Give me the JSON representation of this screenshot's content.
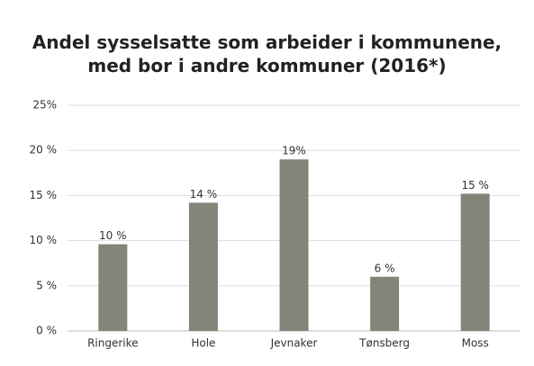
{
  "chart_data": {
    "type": "bar",
    "title": "Andel sysselsatte som arbeider i kommunene, med bor i andre kommuner (2016*)",
    "categories": [
      "Ringerike",
      "Hole",
      "Jevnaker",
      "Tønsberg",
      "Moss"
    ],
    "values": [
      9.6,
      14.2,
      19,
      6,
      15.2
    ],
    "value_labels": [
      "10 %",
      "14 %",
      "19%",
      "6 %",
      "15 %"
    ],
    "color": "#838579",
    "ylim": [
      0,
      25
    ],
    "yticks": [
      {
        "value": 0,
        "label": "0 %"
      },
      {
        "value": 5,
        "label": "5 %"
      },
      {
        "value": 10,
        "label": "10 %"
      },
      {
        "value": 15,
        "label": "15 %"
      },
      {
        "value": 20,
        "label": "20 %"
      },
      {
        "value": 25,
        "label": "25%"
      }
    ],
    "grid": true
  }
}
